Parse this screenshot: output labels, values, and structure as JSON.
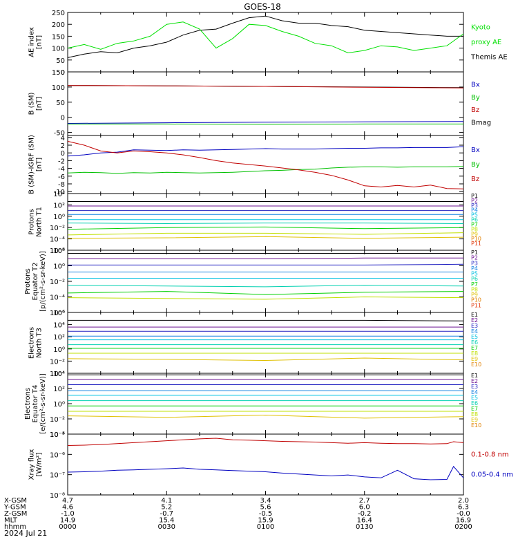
{
  "figure": {
    "title": "GOES-18",
    "date_label": "2024 Jul 21"
  },
  "colors": {
    "kyoto": "#00e000",
    "themis": "#000000",
    "bx": "#0000c0",
    "by": "#00c000",
    "bz": "#c00000",
    "bmag": "#000000",
    "xray_long": "#c00000",
    "xray_short": "#0000c0",
    "channel_palette": [
      "#000000",
      "#6b1090",
      "#2020c0",
      "#1080e0",
      "#00c0e0",
      "#00d0b0",
      "#00d000",
      "#c0e000",
      "#e0c000",
      "#e08000",
      "#e03000",
      "#c00000"
    ]
  },
  "footer": {
    "row_labels": [
      "X-GSM",
      "Y-GSM",
      "Z-GSM",
      "MLT",
      "hhmm"
    ],
    "columns": [
      {
        "values": [
          "4.7",
          "4.6",
          "-1.0",
          "14.9",
          "0000"
        ]
      },
      {
        "values": [
          "4.1",
          "5.2",
          "-0.7",
          "15.4",
          "0030"
        ]
      },
      {
        "values": [
          "3.4",
          "5.6",
          "-0.5",
          "15.9",
          "0100"
        ]
      },
      {
        "values": [
          "2.7",
          "6.0",
          "-0.2",
          "16.4",
          "0130"
        ]
      },
      {
        "values": [
          "2.0",
          "6.3",
          "-0.0",
          "16.9",
          "0200"
        ]
      }
    ]
  },
  "chart_data": [
    {
      "id": "ae",
      "type": "line",
      "ylabel": [
        "AE index",
        "[nT]"
      ],
      "ylim": [
        0,
        250
      ],
      "yticks": [
        "0",
        "50",
        "100",
        "150",
        "200",
        "250"
      ],
      "yticks_minor": 25,
      "log": false,
      "legend": [
        {
          "label": "Kyoto",
          "color_key": "kyoto"
        },
        {
          "label": "proxy AE",
          "color_key": "kyoto"
        },
        {
          "label": "Themis AE",
          "color_key": "themis"
        }
      ],
      "x": [
        0,
        5,
        10,
        15,
        20,
        25,
        30,
        35,
        40,
        45,
        50,
        55,
        60,
        65,
        70,
        75,
        80,
        85,
        90,
        95,
        100,
        105,
        110,
        115,
        120
      ],
      "series": [
        {
          "color_key": "themis",
          "values": [
            60,
            75,
            85,
            80,
            100,
            110,
            125,
            155,
            175,
            180,
            205,
            228,
            235,
            215,
            205,
            205,
            195,
            190,
            175,
            170,
            165,
            160,
            155,
            150,
            150
          ]
        },
        {
          "color_key": "kyoto",
          "values": [
            100,
            115,
            95,
            120,
            130,
            150,
            200,
            210,
            180,
            100,
            140,
            200,
            195,
            170,
            150,
            120,
            110,
            80,
            90,
            110,
            105,
            90,
            100,
            110,
            160
          ]
        }
      ]
    },
    {
      "id": "bsm",
      "type": "line",
      "ylabel": [
        "B (SM)",
        "[nT]"
      ],
      "ylim": [
        -60,
        150
      ],
      "yticks": [
        "-50",
        "0",
        "50",
        "100",
        "150"
      ],
      "yticks_minor": 10,
      "log": false,
      "legend": [
        {
          "label": "Bx",
          "color_key": "bx"
        },
        {
          "label": "By",
          "color_key": "by"
        },
        {
          "label": "Bz",
          "color_key": "bz"
        },
        {
          "label": "Bmag",
          "color_key": "bmag"
        }
      ],
      "x": [
        0,
        30,
        60,
        90,
        120
      ],
      "series": [
        {
          "color_key": "bmag",
          "values": [
            105,
            104,
            102,
            100,
            98
          ]
        },
        {
          "color_key": "bz",
          "values": [
            105,
            104,
            102,
            99,
            97
          ]
        },
        {
          "color_key": "bx",
          "values": [
            -20,
            -18,
            -16,
            -15,
            -14
          ]
        },
        {
          "color_key": "by",
          "values": [
            -22,
            -22,
            -23,
            -22,
            -22
          ]
        }
      ]
    },
    {
      "id": "bdiff",
      "type": "line",
      "ylabel": [
        "B (SM)-IGRF (SM)",
        "[nT]"
      ],
      "ylim": [
        -10.5,
        4.5
      ],
      "yticks": [
        "-10",
        "-8",
        "-6",
        "-4",
        "-2",
        "0",
        "2",
        "4"
      ],
      "yticks_minor": 1,
      "log": false,
      "legend": [
        {
          "label": "Bx",
          "color_key": "bx"
        },
        {
          "label": "By",
          "color_key": "by"
        },
        {
          "label": "Bz",
          "color_key": "bz"
        }
      ],
      "x": [
        0,
        5,
        10,
        15,
        20,
        25,
        30,
        35,
        40,
        45,
        50,
        55,
        60,
        65,
        70,
        75,
        80,
        85,
        90,
        95,
        100,
        105,
        110,
        115,
        120
      ],
      "series": [
        {
          "color_key": "bx",
          "values": [
            -0.8,
            -0.5,
            0,
            0.2,
            0.8,
            0.7,
            0.6,
            0.8,
            0.7,
            0.8,
            0.9,
            1,
            1.1,
            1,
            1,
            1,
            1.1,
            1.2,
            1.2,
            1.3,
            1.3,
            1.4,
            1.4,
            1.4,
            1.6
          ]
        },
        {
          "color_key": "by",
          "values": [
            -5.2,
            -5,
            -5.1,
            -5.3,
            -5.1,
            -5.2,
            -5,
            -5.1,
            -5.2,
            -5.1,
            -5,
            -4.8,
            -4.6,
            -4.5,
            -4.3,
            -4.2,
            -3.9,
            -3.7,
            -3.6,
            -3.6,
            -3.7,
            -3.6,
            -3.6,
            -3.6,
            -3.5
          ]
        },
        {
          "color_key": "bz",
          "values": [
            3,
            2,
            0.5,
            0,
            0.5,
            0.3,
            0,
            -0.5,
            -1.2,
            -2,
            -2.6,
            -3,
            -3.4,
            -3.9,
            -4.4,
            -5,
            -5.8,
            -7,
            -8.5,
            -8.8,
            -8.4,
            -8.8,
            -8.3,
            -9.2,
            -9.3
          ]
        }
      ]
    },
    {
      "id": "p_north",
      "type": "line",
      "ylabel": [
        "Protons",
        "North T1"
      ],
      "ylim_exp": [
        -6,
        4
      ],
      "yticks": [
        "10⁴",
        "10²",
        "10⁰",
        "10⁻²",
        "10⁻⁴",
        "10⁻⁶"
      ],
      "log": true,
      "legend": [
        "P1",
        "P2",
        "P3",
        "P4",
        "P5",
        "P6",
        "P7",
        "P8",
        "P9",
        "P10",
        "P11"
      ],
      "x": [
        0,
        30,
        60,
        90,
        120
      ],
      "series": [
        {
          "values": [
            2.6,
            2.6,
            2.6,
            2.6,
            2.6
          ]
        },
        {
          "values": [
            1.8,
            1.8,
            1.8,
            1.8,
            1.8
          ]
        },
        {
          "values": [
            1,
            1,
            1,
            1,
            1
          ]
        },
        {
          "values": [
            0.3,
            0.3,
            0.3,
            0.3,
            0.3
          ]
        },
        {
          "values": [
            -0.6,
            -0.6,
            -0.6,
            -0.6,
            -0.6
          ]
        },
        {
          "values": [
            -1.2,
            -1.3,
            -1.2,
            -1.2,
            -1.3
          ]
        },
        {
          "values": [
            -2.3,
            -2,
            -1.9,
            -2.2,
            -2
          ]
        },
        {
          "values": [
            -3.3,
            -3,
            -3,
            -3.2,
            -2.9
          ]
        },
        {
          "values": [
            -3.9,
            -3.8,
            -3.6,
            -3.9,
            -3.7
          ]
        }
      ]
    },
    {
      "id": "p_equator",
      "type": "line",
      "ylabel": [
        "Protons",
        "Equator T2",
        "[p/(cm²-s-sr-keV)]"
      ],
      "ylim_exp": [
        -6,
        2
      ],
      "yticks": [
        "10²",
        "10⁰",
        "10⁻²",
        "10⁻⁴",
        "10⁻⁶"
      ],
      "log": true,
      "legend": [
        "P1",
        "P2",
        "P3",
        "P4",
        "P5",
        "P6",
        "P7",
        "P8",
        "P9",
        "P10",
        "P11"
      ],
      "x": [
        0,
        30,
        60,
        90,
        120
      ],
      "series": [
        {
          "values": [
            1.6,
            1.6,
            1.6,
            1.6,
            1.6
          ]
        },
        {
          "values": [
            0.9,
            0.9,
            0.9,
            1,
            1
          ]
        },
        {
          "values": [
            0.1,
            0.1,
            0.1,
            0.1,
            0.2
          ]
        },
        {
          "values": [
            -0.8,
            -0.8,
            -0.8,
            -0.8,
            -0.8
          ]
        },
        {
          "values": [
            -1.6,
            -1.6,
            -1.6,
            -1.6,
            -1.6
          ]
        },
        {
          "values": [
            -2.5,
            -2.6,
            -2.7,
            -2.5,
            -2.6
          ]
        },
        {
          "values": [
            -3.5,
            -3.3,
            -3.7,
            -3.4,
            -3.3
          ]
        },
        {
          "values": [
            -4.1,
            -4.2,
            -4.3,
            -4.0,
            -4.1
          ]
        }
      ]
    },
    {
      "id": "e_north",
      "type": "line",
      "ylabel": [
        "Electrons",
        "North T3"
      ],
      "ylim_exp": [
        -4,
        6
      ],
      "yticks": [
        "10⁶",
        "10⁴",
        "10²",
        "10⁰",
        "10⁻²",
        "10⁻⁴"
      ],
      "log": true,
      "legend": [
        "E1",
        "E2",
        "E3",
        "E4",
        "E5",
        "E6",
        "E7",
        "E8",
        "E9",
        "E10"
      ],
      "x": [
        0,
        30,
        60,
        90,
        120
      ],
      "series": [
        {
          "values": [
            4.7,
            4.7,
            4.7,
            4.7,
            4.6
          ]
        },
        {
          "values": [
            3.6,
            3.6,
            3.6,
            3.6,
            3.6
          ]
        },
        {
          "values": [
            2.9,
            2.9,
            2.9,
            2.9,
            2.9
          ]
        },
        {
          "values": [
            2.1,
            2.1,
            2.1,
            2.1,
            2.1
          ]
        },
        {
          "values": [
            1.5,
            1.5,
            1.5,
            1.5,
            1.5
          ]
        },
        {
          "values": [
            0.7,
            0.7,
            0.7,
            0.7,
            0.7
          ]
        },
        {
          "values": [
            0.1,
            0.1,
            0.1,
            0.1,
            0.1
          ]
        },
        {
          "values": [
            -0.7,
            -0.7,
            -0.7,
            -0.7,
            -0.7
          ]
        },
        {
          "values": [
            -1.6,
            -1.7,
            -1.9,
            -1.5,
            -1.8
          ]
        }
      ]
    },
    {
      "id": "e_equator",
      "type": "line",
      "ylabel": [
        "Electrons",
        "Equator T4",
        "[e/(cm²-s-sr-keV)]"
      ],
      "ylim_exp": [
        -4,
        4
      ],
      "yticks": [
        "10⁴",
        "10²",
        "10⁰",
        "10⁻²",
        "10⁻⁴"
      ],
      "log": true,
      "legend": [
        "E1",
        "E2",
        "E3",
        "E4",
        "E5",
        "E6",
        "E7",
        "E8",
        "E9",
        "E10"
      ],
      "x": [
        0,
        30,
        60,
        90,
        120
      ],
      "series": [
        {
          "values": [
            3.8,
            3.8,
            3.8,
            3.8,
            3.8
          ]
        },
        {
          "values": [
            3.2,
            3.2,
            3.2,
            3.2,
            3.2
          ]
        },
        {
          "values": [
            2.5,
            2.5,
            2.5,
            2.5,
            2.5
          ]
        },
        {
          "values": [
            1.7,
            1.7,
            1.7,
            1.7,
            1.7
          ]
        },
        {
          "values": [
            1.1,
            1.1,
            1.1,
            1.1,
            1.1
          ]
        },
        {
          "values": [
            0.4,
            0.4,
            0.4,
            0.4,
            0.4
          ]
        },
        {
          "values": [
            -0.3,
            -0.3,
            -0.3,
            -0.3,
            -0.3
          ]
        },
        {
          "values": [
            -1,
            -1,
            -1,
            -1,
            -1
          ]
        },
        {
          "values": [
            -1.6,
            -1.8,
            -1.5,
            -1.9,
            -1.7
          ]
        }
      ]
    },
    {
      "id": "xray",
      "type": "line",
      "ylabel": [
        "Xray flux",
        "[W/m²]"
      ],
      "ylim_exp": [
        -8.2,
        -5
      ],
      "yticks": [
        "10⁻⁵",
        "10⁻⁶",
        "10⁻⁷",
        "10⁻⁸"
      ],
      "log": true,
      "legend": [
        {
          "label": "0.1-0.8 nm",
          "color_key": "xray_long"
        },
        {
          "label": "0.05-0.4 nm",
          "color_key": "xray_short"
        }
      ],
      "x": [
        0,
        5,
        10,
        15,
        20,
        25,
        30,
        35,
        40,
        45,
        50,
        55,
        60,
        65,
        70,
        75,
        80,
        85,
        90,
        95,
        100,
        105,
        110,
        115,
        117,
        120
      ],
      "series": [
        {
          "color_key": "xray_long",
          "values": [
            -5.6,
            -5.58,
            -5.55,
            -5.5,
            -5.45,
            -5.4,
            -5.35,
            -5.3,
            -5.25,
            -5.22,
            -5.3,
            -5.32,
            -5.35,
            -5.38,
            -5.4,
            -5.42,
            -5.45,
            -5.48,
            -5.45,
            -5.48,
            -5.5,
            -5.5,
            -5.52,
            -5.5,
            -5.4,
            -5.45
          ]
        },
        {
          "color_key": "xray_short",
          "values": [
            -7.0,
            -6.98,
            -6.95,
            -6.9,
            -6.88,
            -6.85,
            -6.82,
            -6.78,
            -6.85,
            -6.88,
            -6.92,
            -6.95,
            -6.98,
            -7.05,
            -7.1,
            -7.15,
            -7.2,
            -7.15,
            -7.25,
            -7.3,
            -6.9,
            -7.35,
            -7.4,
            -7.38,
            -6.7,
            -7.3
          ]
        }
      ]
    }
  ]
}
